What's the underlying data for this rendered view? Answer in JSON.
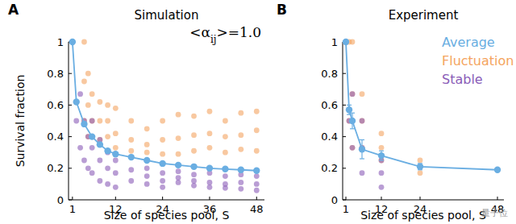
{
  "chart_data": [
    {
      "type": "scatter",
      "panel": "A",
      "title": "Simulation",
      "annotation": [
        "<α",
        "ij",
        ">=1.0"
      ],
      "x_label": "Size of species pool, S",
      "y_label": "Survival fraction",
      "xlim": [
        0,
        50
      ],
      "ylim": [
        0,
        1
      ],
      "xticks": [
        1,
        12,
        24,
        36,
        48
      ],
      "yticks": [
        0,
        0.2,
        0.4,
        0.6,
        0.8,
        1
      ],
      "series": [
        {
          "type": "scatter",
          "color": "#f4a460",
          "marker": "circle",
          "x": [
            4,
            4,
            4,
            5,
            5,
            5,
            6,
            6,
            8,
            8,
            8,
            10,
            10,
            10,
            12,
            12,
            12,
            16,
            16,
            16,
            20,
            20,
            20,
            24,
            24,
            24,
            28,
            28,
            28,
            32,
            32,
            32,
            36,
            36,
            36,
            40,
            40,
            40,
            44,
            44,
            44,
            48,
            48,
            48
          ],
          "values": [
            1.0,
            0.75,
            0.5,
            0.8,
            0.6,
            0.4,
            0.67,
            0.5,
            0.62,
            0.5,
            0.38,
            0.6,
            0.5,
            0.4,
            0.58,
            0.42,
            0.33,
            0.5,
            0.38,
            0.31,
            0.45,
            0.35,
            0.3,
            0.5,
            0.38,
            0.29,
            0.54,
            0.39,
            0.29,
            0.53,
            0.41,
            0.31,
            0.56,
            0.42,
            0.33,
            0.5,
            0.4,
            0.3,
            0.55,
            0.41,
            0.32,
            0.56,
            0.44,
            0.31
          ]
        },
        {
          "type": "scatter",
          "color": "#8a5cb8",
          "marker": "circle",
          "x": [
            1,
            2,
            3,
            3,
            4,
            4,
            5,
            5,
            6,
            6,
            6,
            8,
            8,
            8,
            10,
            10,
            10,
            12,
            12,
            12,
            16,
            16,
            20,
            20,
            20,
            24,
            24,
            24,
            28,
            28,
            28,
            32,
            32,
            32,
            36,
            36,
            36,
            40,
            40,
            40,
            44,
            44,
            44,
            48,
            48,
            48
          ],
          "values": [
            1.0,
            0.5,
            0.67,
            0.33,
            0.5,
            0.25,
            0.4,
            0.2,
            0.5,
            0.33,
            0.17,
            0.38,
            0.25,
            0.12,
            0.3,
            0.2,
            0.1,
            0.25,
            0.17,
            0.08,
            0.19,
            0.12,
            0.2,
            0.15,
            0.1,
            0.17,
            0.12,
            0.08,
            0.18,
            0.14,
            0.11,
            0.16,
            0.12,
            0.09,
            0.17,
            0.11,
            0.08,
            0.15,
            0.1,
            0.075,
            0.16,
            0.11,
            0.07,
            0.15,
            0.1,
            0.06
          ]
        },
        {
          "type": "line",
          "color": "#6aaee2",
          "marker": "circle",
          "line_style": "solid",
          "x": [
            1,
            2,
            4,
            6,
            8,
            10,
            12,
            16,
            20,
            24,
            28,
            32,
            36,
            40,
            44,
            48
          ],
          "values": [
            1.0,
            0.62,
            0.48,
            0.4,
            0.35,
            0.31,
            0.29,
            0.27,
            0.25,
            0.23,
            0.22,
            0.21,
            0.2,
            0.195,
            0.19,
            0.185
          ]
        }
      ]
    },
    {
      "type": "scatter",
      "panel": "B",
      "title": "Experiment",
      "x_label": "Size of species pool, S",
      "legend": "upper right",
      "xlim": [
        0,
        50
      ],
      "ylim": [
        0,
        1
      ],
      "xticks": [
        1,
        12,
        24,
        48
      ],
      "yticks": [
        0,
        0.2,
        0.4,
        0.6,
        0.8,
        1
      ],
      "series": [
        {
          "name": "Fluctuation",
          "type": "scatter",
          "color": "#f4a460",
          "marker": "circle",
          "x": [
            2,
            2,
            3,
            3,
            3,
            6,
            6,
            6,
            12,
            12,
            12,
            24,
            24,
            24,
            48
          ],
          "values": [
            1.0,
            0.5,
            1.0,
            0.67,
            0.33,
            0.67,
            0.5,
            0.33,
            0.42,
            0.33,
            0.25,
            0.25,
            0.21,
            0.17,
            0.19
          ]
        },
        {
          "name": "Stable",
          "type": "scatter",
          "color": "#8a5cb8",
          "marker": "circle",
          "x": [
            1,
            2,
            3,
            3,
            6,
            6,
            6,
            12,
            12,
            12,
            24
          ],
          "values": [
            1.0,
            0.5,
            0.67,
            0.33,
            0.5,
            0.33,
            0.17,
            0.25,
            0.17,
            0.08,
            0.21
          ]
        },
        {
          "name": "Average",
          "type": "line",
          "color": "#6aaee2",
          "marker": "circle",
          "line_style": "solid",
          "x": [
            1,
            2,
            3,
            6,
            12,
            24,
            48
          ],
          "values": [
            1.0,
            0.57,
            0.5,
            0.32,
            0.28,
            0.21,
            0.19
          ],
          "errors": [
            0,
            0.03,
            0.05,
            0.06,
            0.03,
            0.02,
            0
          ]
        }
      ]
    }
  ],
  "watermark": "量子位"
}
